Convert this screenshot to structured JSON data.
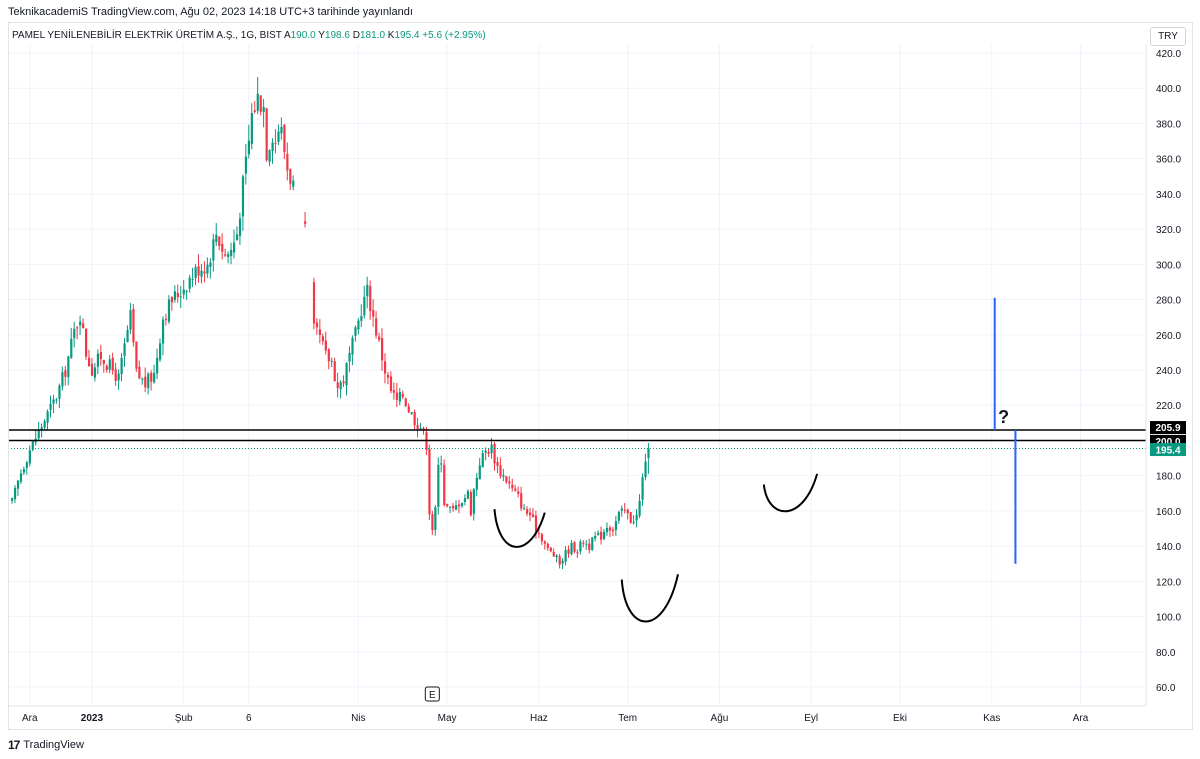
{
  "caption": "TeknikacademiS TradingView.com, Ağu 02, 2023 14:18 UTC+3 tarihinde yayınlandı",
  "legend": {
    "symbol": "PAMEL YENİLENEBİLİR ELEKTRİK ÜRETİM A.Ş., 1G, BIST",
    "open_label": "A",
    "open": "190.0",
    "high_label": "Y",
    "high": "198.6",
    "low_label": "D",
    "low": "181.0",
    "close_label": "K",
    "close": "195.4",
    "change": "+5.6 (+2.95%)"
  },
  "currency": "TRY",
  "footer": {
    "logo": "17",
    "brand": "TradingView"
  },
  "colors": {
    "up": "#089981",
    "down": "#f23645",
    "grid": "#f0f3fa",
    "level_line": "#000000",
    "projection": "#2962ff",
    "price_tag": "#089981"
  },
  "chart_data": {
    "type": "candlestick",
    "y_axis": {
      "ticks": [
        "420.0",
        "400.0",
        "380.0",
        "360.0",
        "340.0",
        "320.0",
        "300.0",
        "280.0",
        "260.0",
        "240.0",
        "220.0",
        "200.0",
        "180.0",
        "160.0",
        "140.0",
        "120.0",
        "100.0",
        "80.0",
        "60.0"
      ],
      "range": [
        50,
        428
      ]
    },
    "x_axis": {
      "labels": [
        {
          "text": "Ara",
          "day": 6,
          "bold": false
        },
        {
          "text": "2023",
          "day": 27,
          "bold": true
        },
        {
          "text": "Şub",
          "day": 58,
          "bold": false
        },
        {
          "text": "6",
          "day": 80,
          "bold": false
        },
        {
          "text": "Nis",
          "day": 117,
          "bold": false
        },
        {
          "text": "May",
          "day": 147,
          "bold": false
        },
        {
          "text": "Haz",
          "day": 178,
          "bold": false
        },
        {
          "text": "Tem",
          "day": 208,
          "bold": false
        },
        {
          "text": "Ağu",
          "day": 239,
          "bold": false
        },
        {
          "text": "Eyl",
          "day": 270,
          "bold": false
        },
        {
          "text": "Eki",
          "day": 300,
          "bold": false
        },
        {
          "text": "Kas",
          "day": 331,
          "bold": false
        },
        {
          "text": "Ara",
          "day": 361,
          "bold": false
        }
      ]
    },
    "close_path": [
      [
        0,
        165
      ],
      [
        3,
        182
      ],
      [
        6,
        195
      ],
      [
        9,
        205
      ],
      [
        12,
        215
      ],
      [
        15,
        225
      ],
      [
        18,
        240
      ],
      [
        21,
        262
      ],
      [
        23,
        272
      ],
      [
        25,
        250
      ],
      [
        27,
        240
      ],
      [
        30,
        248
      ],
      [
        33,
        242
      ],
      [
        36,
        235
      ],
      [
        39,
        262
      ],
      [
        40,
        270
      ],
      [
        42,
        238
      ],
      [
        45,
        232
      ],
      [
        48,
        238
      ],
      [
        51,
        270
      ],
      [
        54,
        280
      ],
      [
        57,
        285
      ],
      [
        60,
        292
      ],
      [
        63,
        298
      ],
      [
        66,
        300
      ],
      [
        69,
        318
      ],
      [
        72,
        305
      ],
      [
        74,
        308
      ],
      [
        76,
        318
      ],
      [
        78,
        345
      ],
      [
        80,
        370
      ],
      [
        81,
        385
      ],
      [
        83,
        395
      ],
      [
        85,
        390
      ],
      [
        86,
        365
      ],
      [
        88,
        375
      ],
      [
        89,
        370
      ],
      [
        90,
        378
      ],
      [
        91,
        375
      ],
      [
        92,
        365
      ],
      [
        93,
        355
      ],
      [
        95,
        345
      ],
      [
        99,
        318
      ],
      [
        101,
        290
      ],
      [
        102,
        262
      ],
      [
        104,
        258
      ],
      [
        106,
        248
      ],
      [
        108,
        245
      ],
      [
        110,
        230
      ],
      [
        112,
        235
      ],
      [
        114,
        248
      ],
      [
        116,
        260
      ],
      [
        118,
        275
      ],
      [
        120,
        285
      ],
      [
        122,
        270
      ],
      [
        124,
        255
      ],
      [
        126,
        240
      ],
      [
        128,
        228
      ],
      [
        130,
        222
      ],
      [
        132,
        226
      ],
      [
        134,
        218
      ],
      [
        136,
        212
      ],
      [
        138,
        208
      ],
      [
        140,
        198
      ],
      [
        141,
        160
      ],
      [
        142,
        150
      ],
      [
        143,
        160
      ],
      [
        144,
        185
      ],
      [
        145,
        190
      ],
      [
        146,
        165
      ],
      [
        147,
        162
      ],
      [
        149,
        160
      ],
      [
        151,
        165
      ],
      [
        153,
        168
      ],
      [
        154,
        170
      ],
      [
        155,
        160
      ],
      [
        156,
        172
      ],
      [
        157,
        180
      ],
      [
        158,
        188
      ],
      [
        160,
        194
      ],
      [
        162,
        196
      ],
      [
        163,
        190
      ],
      [
        164,
        185
      ],
      [
        165,
        182
      ],
      [
        167,
        178
      ],
      [
        169,
        172
      ],
      [
        171,
        168
      ],
      [
        173,
        160
      ],
      [
        175,
        158
      ],
      [
        177,
        150
      ],
      [
        179,
        145
      ],
      [
        181,
        138
      ],
      [
        183,
        135
      ],
      [
        185,
        130
      ],
      [
        187,
        136
      ],
      [
        189,
        140
      ],
      [
        191,
        138
      ],
      [
        193,
        143
      ],
      [
        195,
        140
      ],
      [
        197,
        145
      ],
      [
        199,
        146
      ],
      [
        201,
        152
      ],
      [
        203,
        150
      ],
      [
        205,
        158
      ],
      [
        207,
        160
      ],
      [
        209,
        155
      ],
      [
        211,
        157
      ],
      [
        212,
        165
      ],
      [
        213,
        178
      ],
      [
        214,
        190
      ],
      [
        215,
        195.4
      ]
    ],
    "gaps": [
      [
        96,
        98
      ],
      [
        100,
        101
      ]
    ],
    "levels": [
      {
        "price": 205.9,
        "label": "205.9"
      },
      {
        "price": 200.0,
        "label": "200.0"
      }
    ],
    "last_price": {
      "value": 195.4,
      "label": "195.4"
    },
    "annotations": {
      "projection_up": {
        "day": 332,
        "from": 205.9,
        "to": 281
      },
      "projection_down": {
        "day": 339,
        "from": 205.9,
        "to": 130
      },
      "question_mark": {
        "text": "?",
        "day": 335,
        "price": 214
      }
    },
    "event_marker": {
      "text": "E",
      "day": 142,
      "price": 56
    }
  }
}
